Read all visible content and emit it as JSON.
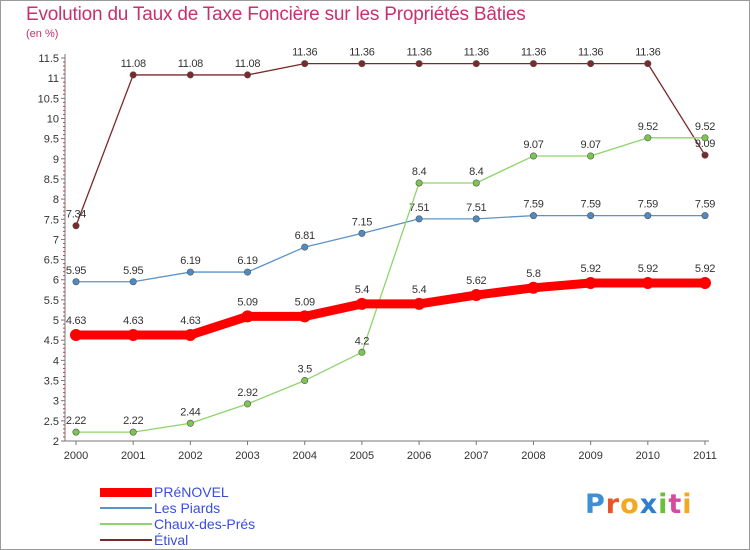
{
  "title": "Evolution du Taux de Taxe Foncière sur les Propriétés Bâties",
  "subtitle": "(en %)",
  "logo": {
    "letters": [
      "P",
      "r",
      "o",
      "x",
      "i",
      "t",
      "i"
    ],
    "colors": [
      "#3d8fd6",
      "#e8532a",
      "#f2a81f",
      "#2f7fcf",
      "#6cbf3a",
      "#d64b9b",
      "#f2a81f"
    ]
  },
  "chart_data": {
    "type": "line",
    "title": "Evolution du Taux de Taxe Foncière sur les Propriétés Bâties",
    "ylabel": "(en %)",
    "x": [
      "2000",
      "2001",
      "2002",
      "2003",
      "2004",
      "2005",
      "2006",
      "2007",
      "2008",
      "2009",
      "2010",
      "2011"
    ],
    "ylim": [
      2,
      11.5
    ],
    "yticks": [
      "2",
      "2.5",
      "3",
      "3.5",
      "4",
      "4.5",
      "5",
      "5.5",
      "6",
      "6.5",
      "7",
      "7.5",
      "8",
      "8.5",
      "9",
      "9.5",
      "10",
      "10.5",
      "11",
      "11.5"
    ],
    "grid": false,
    "legend_position": "bottom-left",
    "series": [
      {
        "name": "Étival",
        "color": "#7a2a2a",
        "marker": "#7a2a2a",
        "thick": false,
        "values": [
          7.34,
          11.08,
          11.08,
          11.08,
          11.36,
          11.36,
          11.36,
          11.36,
          11.36,
          11.36,
          11.36,
          9.09
        ],
        "labels": [
          "7.34",
          "11.08",
          "11.08",
          "11.08",
          "11.36",
          "11.36",
          "11.36",
          "11.36",
          "11.36",
          "11.36",
          "11.36",
          "9.09"
        ]
      },
      {
        "name": "Les Piards",
        "color": "#5b93c8",
        "marker": "#4f8bc2",
        "thick": false,
        "values": [
          5.95,
          5.95,
          6.19,
          6.19,
          6.81,
          7.15,
          7.51,
          7.51,
          7.59,
          7.59,
          7.59,
          7.59
        ],
        "labels": [
          "5.95",
          "5.95",
          "6.19",
          "6.19",
          "6.81",
          "7.15",
          "7.51",
          "7.51",
          "7.59",
          "7.59",
          "7.59",
          "7.59"
        ]
      },
      {
        "name": "Chaux-des-Prés",
        "color": "#8fd46a",
        "marker": "#7cc64f",
        "thick": false,
        "values": [
          2.22,
          2.22,
          2.44,
          2.92,
          3.5,
          4.2,
          8.4,
          8.4,
          9.07,
          9.07,
          9.52,
          9.52
        ],
        "labels": [
          "2.22",
          "2.22",
          "2.44",
          "2.92",
          "3.5",
          "4.2",
          "8.4",
          "8.4",
          "9.07",
          "9.07",
          "9.52",
          "9.52"
        ]
      },
      {
        "name": "PRéNOVEL",
        "color": "#ff0000",
        "marker": "#ff0000",
        "thick": true,
        "values": [
          4.63,
          4.63,
          4.63,
          5.09,
          5.09,
          5.4,
          5.4,
          5.62,
          5.8,
          5.92,
          5.92,
          5.92
        ],
        "labels": [
          "4.63",
          "4.63",
          "4.63",
          "5.09",
          "5.09",
          "5.4",
          "5.4",
          "5.62",
          "5.8",
          "5.92",
          "5.92",
          "5.92"
        ]
      }
    ],
    "legend": [
      {
        "name": "PRéNOVEL",
        "color": "#ff0000",
        "thick": true
      },
      {
        "name": "Les Piards",
        "color": "#5b93c8",
        "thick": false
      },
      {
        "name": "Chaux-des-Prés",
        "color": "#8fd46a",
        "thick": false
      },
      {
        "name": "Étival",
        "color": "#7a2a2a",
        "thick": false
      }
    ]
  }
}
